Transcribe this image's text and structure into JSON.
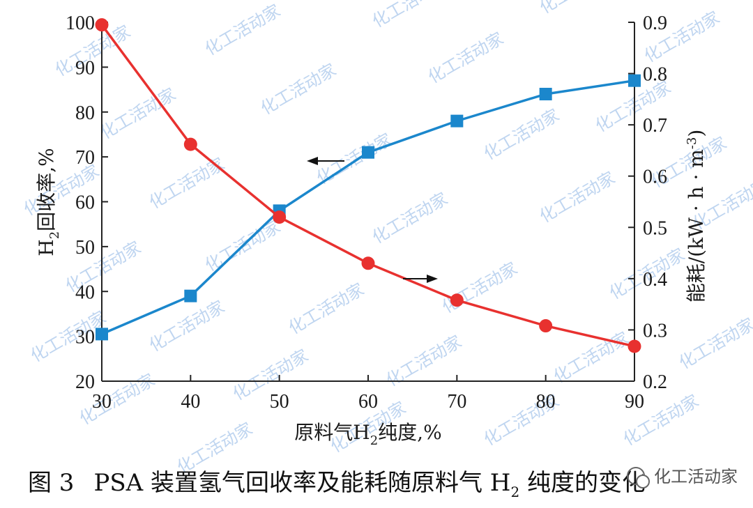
{
  "chart_data": {
    "type": "line",
    "x": [
      30,
      40,
      50,
      60,
      70,
      80,
      90
    ],
    "xlabel_parts": [
      "原料气H",
      "2",
      "纯度,%"
    ],
    "ylabel_left_parts": [
      "H",
      "2",
      "回收率,%"
    ],
    "ylabel_right_parts": [
      "能耗/(kW · h · m",
      "-3",
      ")"
    ],
    "xlim": [
      30,
      90
    ],
    "ylim_left": [
      20,
      100
    ],
    "ylim_right": [
      0.2,
      0.9
    ],
    "xticks": [
      "30",
      "40",
      "50",
      "60",
      "70",
      "80",
      "90"
    ],
    "yticks_left": [
      "20",
      "30",
      "40",
      "50",
      "60",
      "70",
      "80",
      "90",
      "100"
    ],
    "yticks_right": [
      "0.2",
      "0.3",
      "0.4",
      "0.5",
      "0.6",
      "0.7",
      "0.8",
      "0.9"
    ],
    "grid": false,
    "series": [
      {
        "axis": "left",
        "color": "#1b87cc",
        "marker": "square",
        "values": [
          30.5,
          39,
          58,
          71,
          78,
          84,
          87
        ]
      },
      {
        "axis": "right",
        "color": "#e8312f",
        "marker": "circle",
        "values": [
          0.895,
          0.662,
          0.52,
          0.43,
          0.358,
          0.308,
          0.268
        ]
      }
    ],
    "annotations": [
      {
        "symbol": "←",
        "points_to": "left"
      },
      {
        "symbol": "→",
        "points_to": "right"
      }
    ]
  },
  "caption_parts": [
    "图 3",
    "PSA 装置氢气回收率及能耗随原料气 H",
    "2",
    " 纯度的变化"
  ],
  "watermark_text": "化工活动家",
  "brand_text": "化工活动家"
}
